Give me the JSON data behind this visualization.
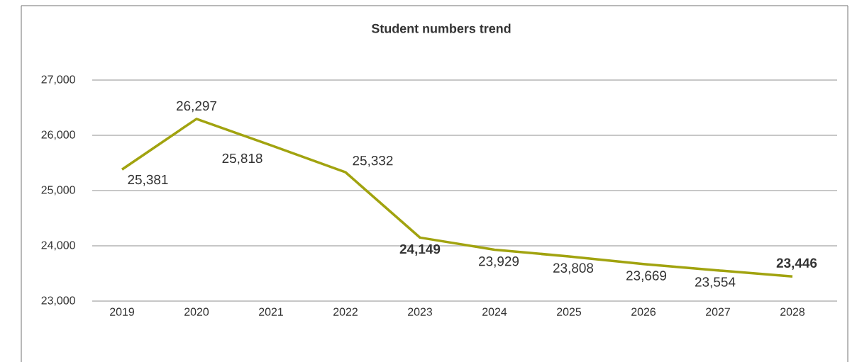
{
  "chart_data": {
    "type": "line",
    "title": "Student numbers trend",
    "categories": [
      "2019",
      "2020",
      "2021",
      "2022",
      "2023",
      "2024",
      "2025",
      "2026",
      "2027",
      "2028"
    ],
    "values": [
      25381,
      26297,
      25818,
      25332,
      24149,
      23929,
      23808,
      23669,
      23554,
      23446
    ],
    "value_labels": [
      "25,381",
      "26,297",
      "25,818",
      "25,332",
      "**24,149**",
      "23,929",
      "23,808",
      "23,669",
      "23,554",
      "**23,446**"
    ],
    "color": "#a1a30f",
    "ylim": [
      23000,
      27000
    ],
    "yticks": [
      {
        "value": 23000,
        "label": "23,000"
      },
      {
        "value": 24000,
        "label": "24,000"
      },
      {
        "value": 25000,
        "label": "25,000"
      },
      {
        "value": 26000,
        "label": "26,000"
      },
      {
        "value": 27000,
        "label": "27,000"
      }
    ],
    "grid": "y",
    "marker": "none"
  }
}
